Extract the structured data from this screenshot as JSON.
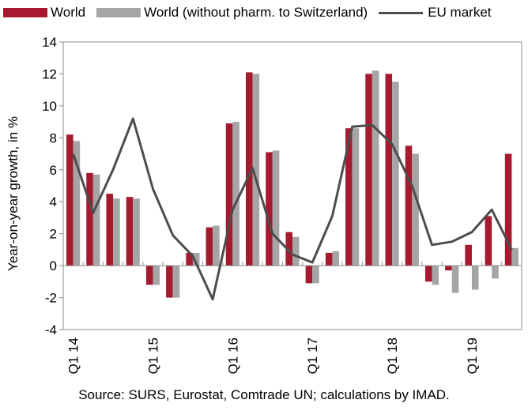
{
  "chart_data": {
    "type": "bar",
    "ylabel": "Year-on-year growth, in %",
    "ylim": [
      -4,
      14
    ],
    "yticks": [
      -4,
      -2,
      0,
      2,
      4,
      6,
      8,
      10,
      12,
      14
    ],
    "x_tick_labels": [
      "Q1 14",
      "Q1 15",
      "Q1 16",
      "Q1 17",
      "Q1 18",
      "Q1 19"
    ],
    "grid": false,
    "legend_position": "top",
    "categories": [
      "Q1 14",
      "Q2 14",
      "Q3 14",
      "Q4 14",
      "Q1 15",
      "Q2 15",
      "Q3 15",
      "Q4 15",
      "Q1 16",
      "Q2 16",
      "Q3 16",
      "Q4 16",
      "Q1 17",
      "Q2 17",
      "Q3 17",
      "Q4 17",
      "Q1 18",
      "Q2 18",
      "Q3 18",
      "Q4 18",
      "Q1 19",
      "Q2 19",
      "Q3 19"
    ],
    "series": [
      {
        "name": "World",
        "kind": "bar",
        "color": "#a6192e",
        "values": [
          8.2,
          5.8,
          4.5,
          4.3,
          -1.2,
          -2.0,
          0.8,
          2.4,
          8.9,
          12.1,
          7.1,
          2.1,
          -1.1,
          0.8,
          8.6,
          12.0,
          12.0,
          7.5,
          -1.0,
          -0.3,
          1.3,
          3.1,
          7.0
        ]
      },
      {
        "name": "World (without pharm. to Switzerland)",
        "kind": "bar",
        "color": "#a5a5a5",
        "values": [
          7.8,
          5.7,
          4.2,
          4.2,
          -1.2,
          -2.0,
          0.8,
          2.5,
          9.0,
          12.0,
          7.2,
          1.8,
          -1.1,
          0.9,
          8.6,
          12.2,
          11.5,
          7.0,
          -1.2,
          -1.7,
          -1.5,
          -0.8,
          1.1
        ]
      },
      {
        "name": "EU market",
        "kind": "line",
        "color": "#4d4d4d",
        "values": [
          7.0,
          3.3,
          6.0,
          9.2,
          4.8,
          1.9,
          0.6,
          -2.1,
          3.5,
          6.1,
          2.0,
          0.7,
          0.2,
          3.1,
          8.7,
          8.8,
          7.6,
          5.0,
          1.3,
          1.5,
          2.1,
          3.5,
          1.0
        ]
      }
    ],
    "source": "Source: SURS, Eurostat, Comtrade UN; calculations by IMAD."
  }
}
